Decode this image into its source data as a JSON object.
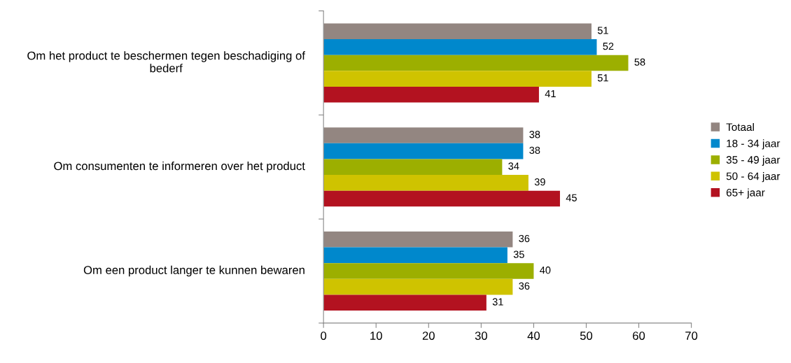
{
  "chart_data": {
    "type": "bar",
    "orientation": "horizontal",
    "categories": [
      "Om het product te beschermen tegen beschadiging of\nbederf",
      "Om consumenten te informeren over het product",
      "Om een product langer te kunnen bewaren"
    ],
    "series": [
      {
        "name": "Totaal",
        "color": "#938681",
        "values": [
          51,
          38,
          36
        ]
      },
      {
        "name": "18 - 34 jaar",
        "color": "#0088cc",
        "values": [
          52,
          38,
          35
        ]
      },
      {
        "name": "35 - 49 jaar",
        "color": "#9caf00",
        "values": [
          58,
          34,
          40
        ]
      },
      {
        "name": "50 - 64 jaar",
        "color": "#cfc300",
        "values": [
          51,
          39,
          36
        ]
      },
      {
        "name": "65+ jaar",
        "color": "#b31220",
        "values": [
          41,
          45,
          31
        ]
      }
    ],
    "xlim": [
      0,
      70
    ],
    "xticks": [
      0,
      10,
      20,
      30,
      40,
      50,
      60,
      70
    ],
    "data_labels": true,
    "grid": false,
    "legend": "right"
  }
}
